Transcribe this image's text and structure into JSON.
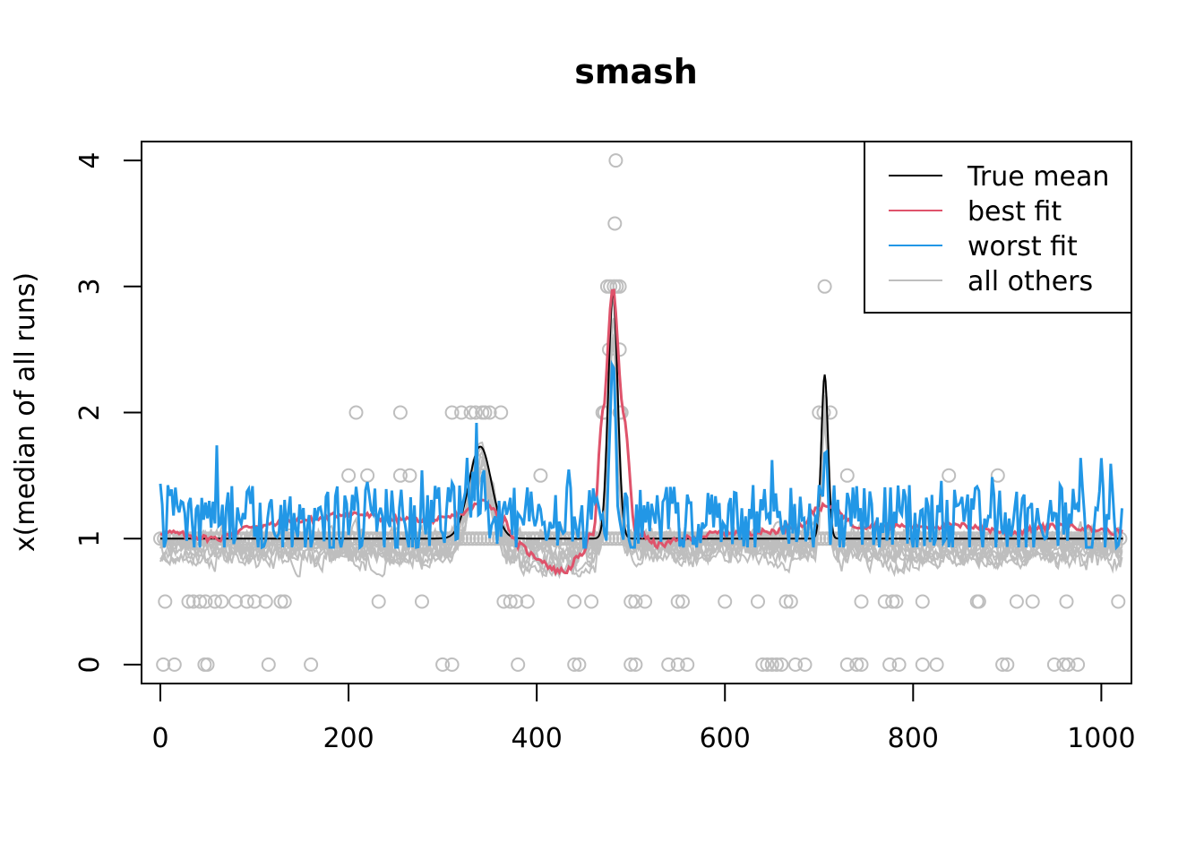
{
  "chart_data": {
    "type": "line",
    "title": "smash",
    "xlabel": "",
    "ylabel": "x(median of all runs)",
    "xlim": [
      -20,
      1032
    ],
    "ylim": [
      -0.15,
      4.15
    ],
    "xticks": [
      0,
      200,
      400,
      600,
      800,
      1000
    ],
    "yticks": [
      0,
      1,
      2,
      3,
      4
    ],
    "xtick_labels": [
      "0",
      "200",
      "400",
      "600",
      "800",
      "1000"
    ],
    "ytick_labels": [
      "0",
      "1",
      "2",
      "3",
      "4"
    ],
    "legend": {
      "position": "top-right",
      "entries": [
        {
          "label": "True mean",
          "color": "#000000"
        },
        {
          "label": "best fit",
          "color": "#DF536B"
        },
        {
          "label": "worst fit",
          "color": "#2297E6"
        },
        {
          "label": "all others",
          "color": "#BEBEBE"
        }
      ]
    },
    "true_mean": {
      "baseline": 1.0,
      "bumps": [
        {
          "center": 340,
          "height": 0.73,
          "width": 12
        },
        {
          "center": 481,
          "height": 1.95,
          "width": 5
        },
        {
          "center": 706,
          "height": 1.3,
          "width": 3.5
        }
      ]
    },
    "best_fit_anchors": {
      "x": [
        0,
        60,
        100,
        160,
        200,
        250,
        300,
        320,
        345,
        365,
        380,
        400,
        420,
        430,
        445,
        460,
        470,
        481,
        492,
        505,
        530,
        560,
        600,
        640,
        680,
        700,
        715,
        740,
        800,
        860,
        900,
        960,
        1023
      ],
      "y": [
        1.05,
        1.0,
        1.1,
        1.15,
        1.2,
        1.15,
        1.15,
        1.2,
        1.3,
        1.15,
        0.95,
        0.85,
        0.75,
        0.74,
        0.85,
        1.05,
        2.0,
        2.98,
        2.0,
        1.05,
        0.95,
        1.0,
        1.05,
        1.05,
        1.1,
        1.25,
        1.25,
        1.1,
        1.1,
        1.1,
        1.05,
        1.1,
        1.05
      ]
    },
    "worst_fit": {
      "baseline": 1.15,
      "noise_amplitude": 0.55,
      "spike_at": 481,
      "spike_peak": 2.2
    },
    "other_runs": {
      "count": 10,
      "noise_amplitude": 0.35
    },
    "observations": {
      "y_levels": [
        0,
        0.5,
        1,
        1.5,
        2,
        2.5,
        3,
        3.5,
        4
      ],
      "x_at_0": [
        3,
        15,
        47,
        50,
        115,
        160,
        300,
        310,
        380,
        440,
        445,
        500,
        505,
        540,
        550,
        560,
        640,
        645,
        650,
        655,
        660,
        675,
        685,
        730,
        740,
        745,
        775,
        785,
        810,
        825,
        895,
        900,
        950,
        960,
        965,
        975
      ],
      "x_at_0_5": [
        5,
        30,
        35,
        42,
        48,
        58,
        65,
        80,
        92,
        100,
        112,
        128,
        132,
        232,
        278,
        365,
        372,
        378,
        390,
        440,
        458,
        500,
        505,
        515,
        550,
        555,
        600,
        635,
        665,
        670,
        745,
        770,
        778,
        782,
        810,
        868,
        870,
        910,
        927,
        963,
        1018
      ],
      "x_at_1_5": [
        200,
        220,
        255,
        265,
        404,
        730,
        838,
        890
      ],
      "x_at_2": [
        208,
        255,
        310,
        320,
        330,
        335,
        342,
        345,
        350,
        362,
        470,
        472,
        488,
        490,
        700,
        705,
        712
      ],
      "x_at_2_5": [
        477,
        488
      ],
      "x_at_3": [
        475,
        478,
        482,
        485,
        488,
        706
      ],
      "x_at_3_5": [
        483
      ],
      "x_at_4": [
        484
      ]
    }
  }
}
